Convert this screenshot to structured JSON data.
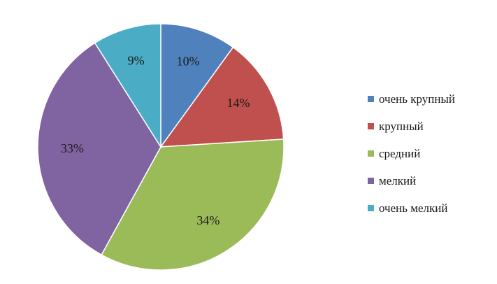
{
  "chart_data": {
    "type": "pie",
    "categories": [
      "очень крупный",
      "крупный",
      "средний",
      "мелкий",
      "очень мелкий"
    ],
    "values": [
      10,
      14,
      34,
      33,
      9
    ],
    "labels": [
      "10%",
      "14%",
      "34%",
      "33%",
      "9%"
    ],
    "colors": [
      "#4f81bd",
      "#c0504d",
      "#9bbb59",
      "#8064a2",
      "#4bacc6"
    ],
    "legend_position": "right"
  }
}
